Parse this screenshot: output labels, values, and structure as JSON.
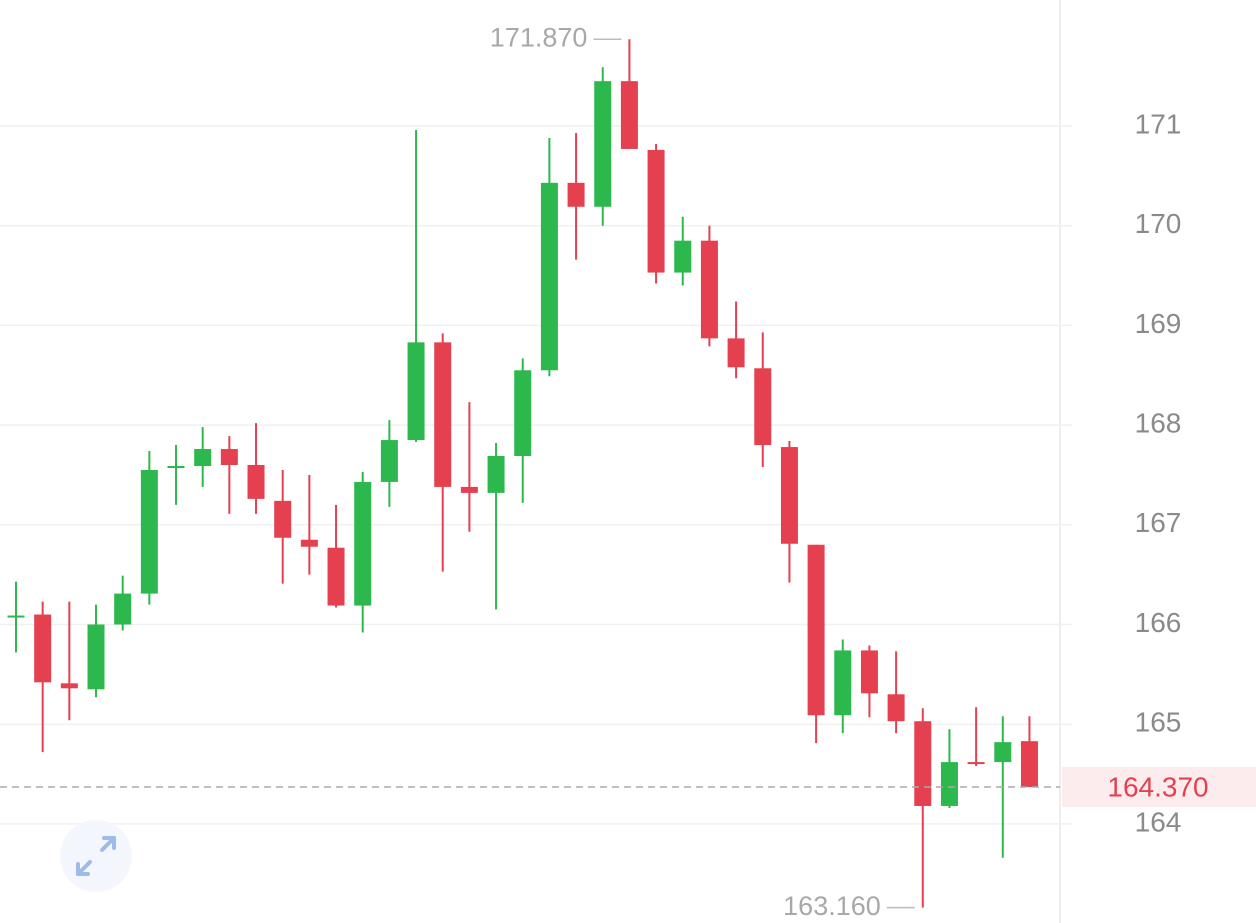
{
  "chart_data": {
    "type": "candlestick",
    "up_color": "#2db84d",
    "down_color": "#e5404f",
    "grid": true,
    "ylim": [
      163.006,
      172.264
    ],
    "yticks": [
      164,
      165,
      166,
      167,
      168,
      169,
      170,
      171
    ],
    "open": [
      166.07,
      166.1,
      165.41,
      165.35,
      166.0,
      166.31,
      167.57,
      167.59,
      167.76,
      167.6,
      167.24,
      166.85,
      166.77,
      166.19,
      167.43,
      167.85,
      168.83,
      167.38,
      167.32,
      167.69,
      168.55,
      170.43,
      170.19,
      171.45,
      170.76,
      169.53,
      169.85,
      168.87,
      168.57,
      167.78,
      166.8,
      165.09,
      165.74,
      165.3,
      165.03,
      164.18,
      164.62,
      164.62,
      164.83
    ],
    "high": [
      166.43,
      166.23,
      166.23,
      166.2,
      166.49,
      167.74,
      167.8,
      167.98,
      167.89,
      168.02,
      167.55,
      167.5,
      167.2,
      167.53,
      168.05,
      170.96,
      168.92,
      168.23,
      167.82,
      168.67,
      170.88,
      170.93,
      171.59,
      171.87,
      170.82,
      170.09,
      170.0,
      169.24,
      168.93,
      167.84,
      166.8,
      165.85,
      165.79,
      165.73,
      165.16,
      164.95,
      165.17,
      165.08,
      165.08
    ],
    "low": [
      165.72,
      164.72,
      165.04,
      165.27,
      165.94,
      166.2,
      167.2,
      167.38,
      167.11,
      167.11,
      166.41,
      166.5,
      166.17,
      165.92,
      167.18,
      167.83,
      166.53,
      166.93,
      166.15,
      167.22,
      168.49,
      169.66,
      170.0,
      170.77,
      169.42,
      169.4,
      168.79,
      168.47,
      167.58,
      166.42,
      164.81,
      164.91,
      165.07,
      164.91,
      163.16,
      164.16,
      164.58,
      163.66,
      164.37
    ],
    "close": [
      166.09,
      165.42,
      165.36,
      166.0,
      166.31,
      167.55,
      167.59,
      167.76,
      167.6,
      167.26,
      166.87,
      166.78,
      166.19,
      167.43,
      167.85,
      168.83,
      167.38,
      167.32,
      167.69,
      168.55,
      170.43,
      170.19,
      171.45,
      170.77,
      169.53,
      169.85,
      168.87,
      168.58,
      167.8,
      166.81,
      165.09,
      165.74,
      165.31,
      165.03,
      164.18,
      164.62,
      164.6,
      164.82,
      164.37
    ],
    "max_marker": {
      "value": 171.87,
      "label": "171.870"
    },
    "min_marker": {
      "value": 163.16,
      "label": "163.160"
    },
    "last_price": {
      "value": 164.37,
      "label": "164.370"
    }
  }
}
